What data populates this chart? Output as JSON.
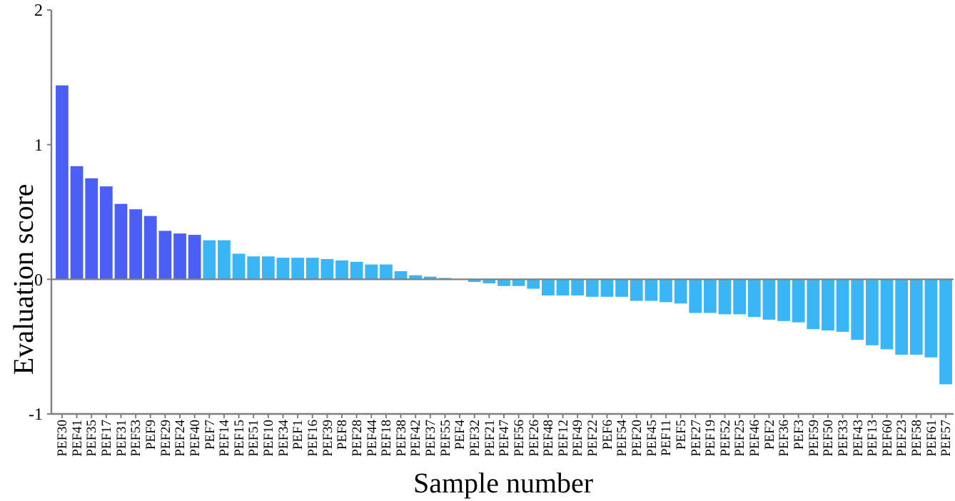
{
  "chart_data": {
    "type": "bar",
    "xlabel": "Sample number",
    "ylabel": "Evaluation score",
    "categories": [
      "PEF30",
      "PEF41",
      "PEF35",
      "PEF17",
      "PEF31",
      "PEF53",
      "PEF9",
      "PEF29",
      "PEF24",
      "PEF40",
      "PEF7",
      "PEF14",
      "PEF15",
      "PEF51",
      "PEF10",
      "PEF34",
      "PEF1",
      "PEF16",
      "PEF39",
      "PEF8",
      "PEF28",
      "PEF44",
      "PEF18",
      "PEF38",
      "PEF42",
      "PEF37",
      "PEF55",
      "PEF4",
      "PEF32",
      "PEF21",
      "PEF47",
      "PEF56",
      "PEF26",
      "PEF48",
      "PEF12",
      "PEF49",
      "PEF22",
      "PEF6",
      "PEF54",
      "PEF20",
      "PEF45",
      "PEF11",
      "PEF5",
      "PEF27",
      "PEF19",
      "PEF52",
      "PEF25",
      "PEF46",
      "PEF2",
      "PEF36",
      "PEF3",
      "PEF59",
      "PEF50",
      "PEF33",
      "PEF43",
      "PEF13",
      "PEF60",
      "PEF23",
      "PEF58",
      "PEF61",
      "PEF57"
    ],
    "values": [
      1.44,
      0.84,
      0.75,
      0.69,
      0.56,
      0.52,
      0.47,
      0.36,
      0.34,
      0.33,
      0.29,
      0.29,
      0.19,
      0.17,
      0.17,
      0.16,
      0.16,
      0.16,
      0.15,
      0.14,
      0.13,
      0.11,
      0.11,
      0.06,
      0.03,
      0.02,
      0.01,
      null,
      -0.02,
      -0.03,
      -0.05,
      -0.05,
      -0.07,
      -0.12,
      -0.12,
      -0.12,
      -0.13,
      -0.13,
      -0.13,
      -0.16,
      -0.16,
      -0.17,
      -0.18,
      -0.25,
      -0.25,
      -0.26,
      -0.26,
      -0.28,
      -0.3,
      -0.31,
      -0.32,
      -0.37,
      -0.38,
      -0.39,
      -0.45,
      -0.49,
      -0.52,
      -0.56,
      -0.56,
      -0.58,
      -0.78
    ],
    "colors": [
      "#4b5ff7",
      "#4b5ff7",
      "#4b5ff7",
      "#4b5ff7",
      "#4b5ff7",
      "#4b5ff7",
      "#4b5ff7",
      "#4b5ff7",
      "#4b5ff7",
      "#4b5ff7",
      "#3ab6f7",
      "#3ab6f7",
      "#3ab6f7",
      "#3ab6f7",
      "#3ab6f7",
      "#3ab6f7",
      "#3ab6f7",
      "#3ab6f7",
      "#3ab6f7",
      "#3ab6f7",
      "#3ab6f7",
      "#3ab6f7",
      "#3ab6f7",
      "#3ab6f7",
      "#3ab6f7",
      "#3ab6f7",
      "#3ab6f7",
      "#3ab6f7",
      "#3ab6f7",
      "#3ab6f7",
      "#3ab6f7",
      "#3ab6f7",
      "#3ab6f7",
      "#3ab6f7",
      "#3ab6f7",
      "#3ab6f7",
      "#3ab6f7",
      "#3ab6f7",
      "#3ab6f7",
      "#3ab6f7",
      "#3ab6f7",
      "#3ab6f7",
      "#3ab6f7",
      "#3ab6f7",
      "#3ab6f7",
      "#3ab6f7",
      "#3ab6f7",
      "#3ab6f7",
      "#3ab6f7",
      "#3ab6f7",
      "#3ab6f7",
      "#3ab6f7",
      "#3ab6f7",
      "#3ab6f7",
      "#3ab6f7",
      "#3ab6f7",
      "#3ab6f7",
      "#3ab6f7",
      "#3ab6f7",
      "#3ab6f7",
      "#3ab6f7"
    ],
    "ylim": [
      -1,
      2
    ],
    "yticks": [
      -1,
      0,
      1,
      2
    ],
    "ref_lines": [
      {
        "axis": "y",
        "value": 0,
        "color": "#808080"
      }
    ]
  }
}
